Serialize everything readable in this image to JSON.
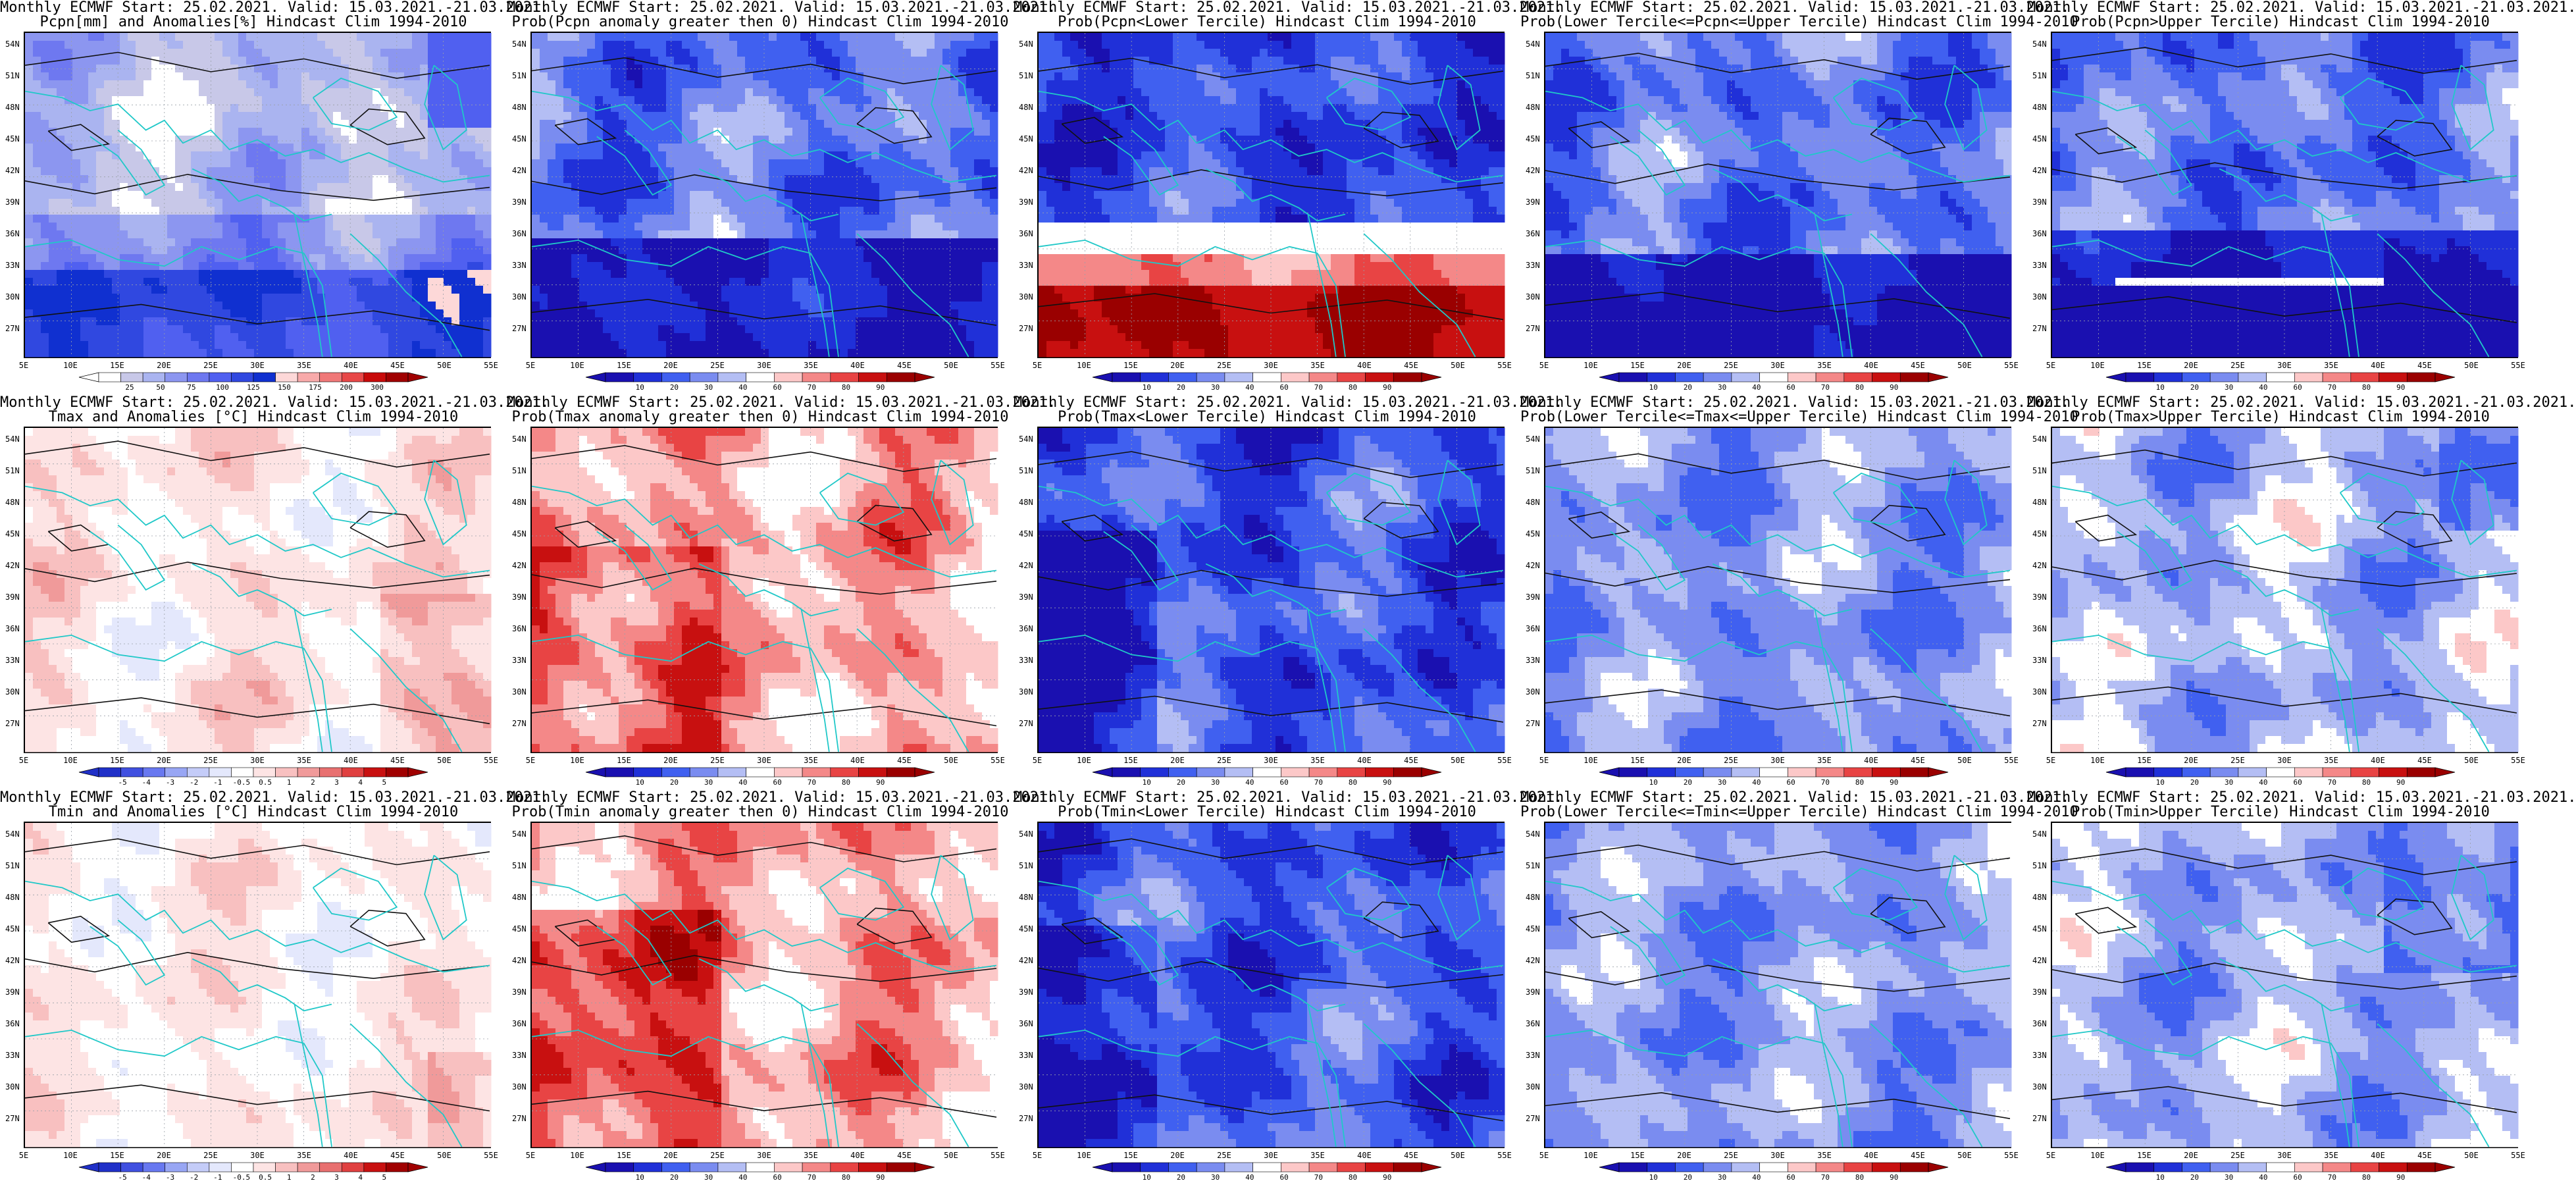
{
  "lat_ticks": [
    "54N",
    "51N",
    "48N",
    "45N",
    "42N",
    "39N",
    "36N",
    "33N",
    "30N",
    "27N"
  ],
  "lon_ticks": [
    "5E",
    "10E",
    "15E",
    "20E",
    "25E",
    "30E",
    "35E",
    "40E",
    "45E",
    "50E",
    "55E"
  ],
  "colorbars": {
    "pcpn_anom": {
      "colors": [
        "#ffffff",
        "#c8c8e8",
        "#aab4f0",
        "#8c96f0",
        "#6e78f0",
        "#5060f0",
        "#3048e0",
        "#1030d0",
        "#fdd8d8",
        "#f8aaaa",
        "#f07878",
        "#e84848",
        "#c80a0a",
        "#a00000"
      ],
      "labels": [
        "25",
        "50",
        "75",
        "100",
        "125",
        "150",
        "175",
        "200",
        "300"
      ]
    },
    "temp_anom": {
      "colors": [
        "#2030c8",
        "#4050e0",
        "#6878f0",
        "#98a6f4",
        "#c4ccf8",
        "#e4e8fc",
        "#ffffff",
        "#fde4e4",
        "#f8c0c0",
        "#f09a9a",
        "#e87070",
        "#e04040",
        "#c81010",
        "#a00000"
      ],
      "labels": [
        "-5",
        "-4",
        "-3",
        "-2",
        "-1",
        "-0.5",
        "0.5",
        "1",
        "2",
        "3",
        "4",
        "5"
      ]
    },
    "prob": {
      "colors": [
        "#1a10b0",
        "#2030d8",
        "#4060f0",
        "#7a8cf0",
        "#b4bef4",
        "#ffffff",
        "#fcc8c8",
        "#f48888",
        "#e84444",
        "#c81010",
        "#9a0000"
      ],
      "labels": [
        "10",
        "20",
        "30",
        "40",
        "60",
        "70",
        "80",
        "90"
      ]
    }
  },
  "panels": [
    {
      "id": "p1",
      "title_line1": "Monthly ECMWF Start: 25.02.2021. Valid: 15.03.2021.-21.03.2021.",
      "title_line2": "Pcpn[mm] and Anomalies[%] Hindcast Clim 1994-2010",
      "colorbar": "pcpn_anom",
      "field": "pcpn_anom"
    },
    {
      "id": "p2",
      "title_line1": "Monthly ECMWF Start: 25.02.2021. Valid: 15.03.2021.-21.03.2021.",
      "title_line2": "Prob(Pcpn anomaly greater then 0) Hindcast Clim 1994-2010",
      "colorbar": "prob",
      "field": "pcpn_gt0"
    },
    {
      "id": "p3",
      "title_line1": "Monthly ECMWF Start: 25.02.2021. Valid: 15.03.2021.-21.03.2021.",
      "title_line2": "Prob(Pcpn<Lower Tercile) Hindcast Clim 1994-2010",
      "colorbar": "prob",
      "field": "pcpn_lower"
    },
    {
      "id": "p4",
      "title_line1": "Monthly ECMWF Start: 25.02.2021. Valid: 15.03.2021.-21.03.2021.",
      "title_line2": "Prob(Lower Tercile<=Pcpn<=Upper Tercile) Hindcast Clim 1994-2010",
      "colorbar": "prob",
      "field": "pcpn_mid"
    },
    {
      "id": "p5",
      "title_line1": "Monthly ECMWF Start: 25.02.2021. Valid: 15.03.2021.-21.03.2021.",
      "title_line2": "Prob(Pcpn>Upper Tercile) Hindcast Clim 1994-2010",
      "colorbar": "prob",
      "field": "pcpn_upper"
    },
    {
      "id": "p6",
      "title_line1": "Monthly ECMWF Start: 25.02.2021. Valid: 15.03.2021.-21.03.2021.",
      "title_line2": "Tmax and Anomalies [°C] Hindcast Clim 1994-2010",
      "colorbar": "temp_anom",
      "field": "tmax_anom"
    },
    {
      "id": "p7",
      "title_line1": "Monthly ECMWF Start: 25.02.2021. Valid: 15.03.2021.-21.03.2021.",
      "title_line2": "Prob(Tmax anomaly greater then 0) Hindcast Clim 1994-2010",
      "colorbar": "prob",
      "field": "tmax_gt0"
    },
    {
      "id": "p8",
      "title_line1": "Monthly ECMWF Start: 25.02.2021. Valid: 15.03.2021.-21.03.2021.",
      "title_line2": "Prob(Tmax<Lower Tercile) Hindcast Clim 1994-2010",
      "colorbar": "prob",
      "field": "tmax_lower"
    },
    {
      "id": "p9",
      "title_line1": "Monthly ECMWF Start: 25.02.2021. Valid: 15.03.2021.-21.03.2021.",
      "title_line2": "Prob(Lower Tercile<=Tmax<=Upper Tercile) Hindcast Clim 1994-2010",
      "colorbar": "prob",
      "field": "tmax_mid"
    },
    {
      "id": "p10",
      "title_line1": "Monthly ECMWF Start: 25.02.2021. Valid: 15.03.2021.-21.03.2021.",
      "title_line2": "Prob(Tmax>Upper Tercile) Hindcast Clim 1994-2010",
      "colorbar": "prob",
      "field": "tmax_upper"
    },
    {
      "id": "p11",
      "title_line1": "Monthly ECMWF Start: 25.02.2021. Valid: 15.03.2021.-21.03.2021.",
      "title_line2": "Tmin and Anomalies [°C] Hindcast Clim 1994-2010",
      "colorbar": "temp_anom",
      "field": "tmin_anom"
    },
    {
      "id": "p12",
      "title_line1": "Monthly ECMWF Start: 25.02.2021. Valid: 15.03.2021.-21.03.2021.",
      "title_line2": "Prob(Tmin anomaly greater then 0) Hindcast Clim 1994-2010",
      "colorbar": "prob",
      "field": "tmin_gt0"
    },
    {
      "id": "p13",
      "title_line1": "Monthly ECMWF Start: 25.02.2021. Valid: 15.03.2021.-21.03.2021.",
      "title_line2": "Prob(Tmin<Lower Tercile) Hindcast Clim 1994-2010",
      "colorbar": "prob",
      "field": "tmin_lower"
    },
    {
      "id": "p14",
      "title_line1": "Monthly ECMWF Start: 25.02.2021. Valid: 15.03.2021.-21.03.2021.",
      "title_line2": "Prob(Lower Tercile<=Tmin<=Upper Tercile) Hindcast Clim 1994-2010",
      "colorbar": "prob",
      "field": "tmin_mid"
    },
    {
      "id": "p15",
      "title_line1": "Monthly ECMWF Start: 25.02.2021. Valid: 15.03.2021.-21.03.2021.",
      "title_line2": "Prob(Tmin>Upper Tercile) Hindcast Clim 1994-2010",
      "colorbar": "prob",
      "field": "tmin_upper"
    }
  ]
}
